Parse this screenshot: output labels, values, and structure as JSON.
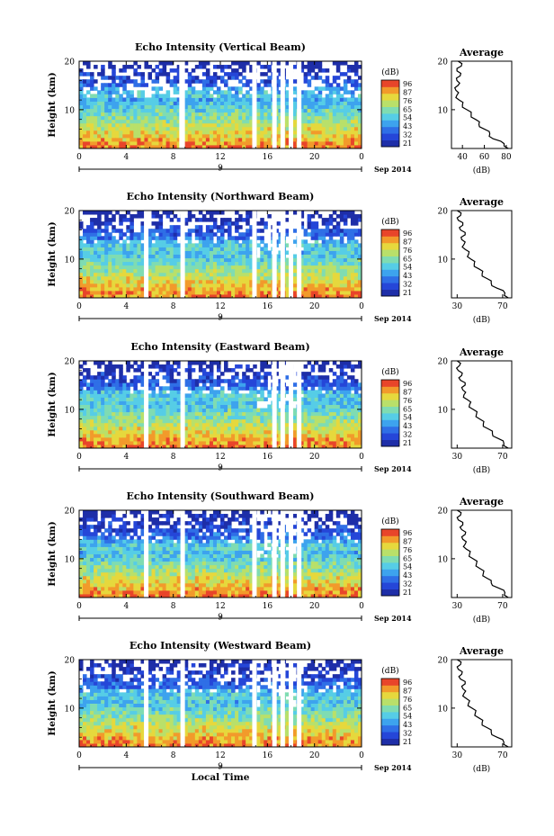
{
  "chart_data": [
    {
      "type": "heatmap",
      "title": "Echo Intensity (Vertical Beam)",
      "ylabel": "Height (km)",
      "ylim": [
        2,
        20
      ],
      "xlim": [
        0,
        24
      ],
      "x_ticks": [
        "0",
        "4",
        "8",
        "12",
        "16",
        "20",
        "0"
      ],
      "y_ticks": [
        "20",
        "10"
      ],
      "date_tick": "9",
      "date_label": "Sep 2014",
      "colorbar_unit": "(dB)",
      "colorbar_ticks": [
        "96",
        "87",
        "76",
        "65",
        "54",
        "43",
        "32",
        "21"
      ],
      "data_gaps_hours": [
        8.7,
        8.8,
        14.9,
        16.6,
        17.3,
        18.0,
        18.7
      ],
      "average_profile": {
        "title": "Average",
        "xlabel": "(dB)",
        "x_ticks": [
          "40",
          "60",
          "80"
        ],
        "xlim": [
          30,
          85
        ],
        "ylim": [
          2,
          20
        ],
        "y_ticks": [
          "20",
          "10"
        ],
        "heights_km": [
          2,
          3,
          4,
          5,
          6,
          7,
          8,
          9,
          10,
          11,
          12,
          13,
          14,
          15,
          16,
          17,
          18,
          19,
          20
        ],
        "values_db": [
          82,
          78,
          68,
          65,
          60,
          55,
          52,
          48,
          44,
          40,
          37,
          35,
          34,
          36,
          35,
          38,
          35,
          39,
          36
        ]
      }
    },
    {
      "type": "heatmap",
      "title": "Echo Intensity (Northward Beam)",
      "ylabel": "Height (km)",
      "ylim": [
        2,
        20
      ],
      "xlim": [
        0,
        24
      ],
      "x_ticks": [
        "0",
        "4",
        "8",
        "12",
        "16",
        "20",
        "0"
      ],
      "y_ticks": [
        "20",
        "10"
      ],
      "date_tick": "9",
      "date_label": "Sep 2014",
      "colorbar_unit": "(dB)",
      "colorbar_ticks": [
        "96",
        "87",
        "76",
        "65",
        "54",
        "43",
        "32",
        "21"
      ],
      "data_gaps_hours": [
        5.7,
        8.8,
        14.9,
        16.6,
        17.3,
        18.0,
        18.7
      ],
      "average_profile": {
        "title": "Average",
        "xlabel": "(dB)",
        "x_ticks": [
          "30",
          "70"
        ],
        "xlim": [
          25,
          78
        ],
        "ylim": [
          2,
          20
        ],
        "y_ticks": [
          "20",
          "10"
        ],
        "heights_km": [
          2,
          3,
          4,
          5,
          6,
          7,
          8,
          9,
          10,
          11,
          12,
          13,
          14,
          15,
          16,
          17,
          18,
          19,
          20
        ],
        "values_db": [
          75,
          72,
          65,
          60,
          56,
          52,
          49,
          45,
          42,
          40,
          37,
          36,
          34,
          37,
          33,
          35,
          31,
          33,
          30
        ]
      }
    },
    {
      "type": "heatmap",
      "title": "Echo Intensity (Eastward Beam)",
      "ylabel": "Height (km)",
      "ylim": [
        2,
        20
      ],
      "xlim": [
        0,
        24
      ],
      "x_ticks": [
        "0",
        "4",
        "8",
        "12",
        "16",
        "20",
        "0"
      ],
      "y_ticks": [
        "20",
        "10"
      ],
      "date_tick": "9",
      "date_label": "Sep 2014",
      "colorbar_unit": "(dB)",
      "colorbar_ticks": [
        "96",
        "87",
        "76",
        "65",
        "54",
        "43",
        "32",
        "21"
      ],
      "data_gaps_hours": [
        5.7,
        8.8,
        16.6,
        17.3,
        18.0,
        18.7
      ],
      "average_profile": {
        "title": "Average",
        "xlabel": "(dB)",
        "x_ticks": [
          "30",
          "70"
        ],
        "xlim": [
          25,
          78
        ],
        "ylim": [
          2,
          20
        ],
        "y_ticks": [
          "20",
          "10"
        ],
        "heights_km": [
          2,
          3,
          4,
          5,
          6,
          7,
          8,
          9,
          10,
          11,
          12,
          13,
          14,
          15,
          16,
          17,
          18,
          19,
          20
        ],
        "values_db": [
          75,
          71,
          66,
          61,
          57,
          53,
          50,
          47,
          44,
          41,
          39,
          36,
          35,
          37,
          33,
          34,
          31,
          32,
          30
        ]
      }
    },
    {
      "type": "heatmap",
      "title": "Echo Intensity (Southward Beam)",
      "ylabel": "Height (km)",
      "ylim": [
        2,
        20
      ],
      "xlim": [
        0,
        24
      ],
      "x_ticks": [
        "0",
        "4",
        "8",
        "12",
        "16",
        "20",
        "0"
      ],
      "y_ticks": [
        "20",
        "10"
      ],
      "date_tick": "9",
      "date_label": "Sep 2014",
      "colorbar_unit": "(dB)",
      "colorbar_ticks": [
        "96",
        "87",
        "76",
        "65",
        "54",
        "43",
        "32",
        "21"
      ],
      "data_gaps_hours": [
        5.7,
        8.8,
        14.9,
        16.6,
        17.3,
        18.0,
        18.7
      ],
      "average_profile": {
        "title": "Average",
        "xlabel": "(dB)",
        "x_ticks": [
          "30",
          "70"
        ],
        "xlim": [
          25,
          78
        ],
        "ylim": [
          2,
          20
        ],
        "y_ticks": [
          "20",
          "10"
        ],
        "heights_km": [
          2,
          3,
          4,
          5,
          6,
          7,
          8,
          9,
          10,
          11,
          12,
          13,
          14,
          15,
          16,
          17,
          18,
          19,
          20
        ],
        "values_db": [
          75,
          72,
          66,
          60,
          56,
          53,
          50,
          47,
          44,
          41,
          38,
          37,
          35,
          37,
          34,
          35,
          31,
          33,
          30
        ]
      }
    },
    {
      "type": "heatmap",
      "title": "Echo Intensity (Westward Beam)",
      "ylabel": "Height (km)",
      "xlabel": "Local Time",
      "ylim": [
        2,
        20
      ],
      "xlim": [
        0,
        24
      ],
      "x_ticks": [
        "0",
        "4",
        "8",
        "12",
        "16",
        "20",
        "0"
      ],
      "y_ticks": [
        "20",
        "10"
      ],
      "date_tick": "9",
      "date_label": "Sep 2014",
      "colorbar_unit": "(dB)",
      "colorbar_ticks": [
        "96",
        "87",
        "76",
        "65",
        "54",
        "43",
        "32",
        "21"
      ],
      "data_gaps_hours": [
        5.7,
        8.8,
        14.9,
        16.6,
        17.3,
        18.0,
        18.7
      ],
      "average_profile": {
        "title": "Average",
        "xlabel": "(dB)",
        "x_ticks": [
          "30",
          "70"
        ],
        "xlim": [
          25,
          78
        ],
        "ylim": [
          2,
          20
        ],
        "y_ticks": [
          "20",
          "10"
        ],
        "heights_km": [
          2,
          3,
          4,
          5,
          6,
          7,
          8,
          9,
          10,
          11,
          12,
          13,
          14,
          15,
          16,
          17,
          18,
          19,
          20
        ],
        "values_db": [
          75,
          71,
          65,
          60,
          56,
          52,
          49,
          46,
          43,
          40,
          38,
          36,
          35,
          37,
          33,
          34,
          31,
          33,
          30
        ]
      }
    }
  ]
}
